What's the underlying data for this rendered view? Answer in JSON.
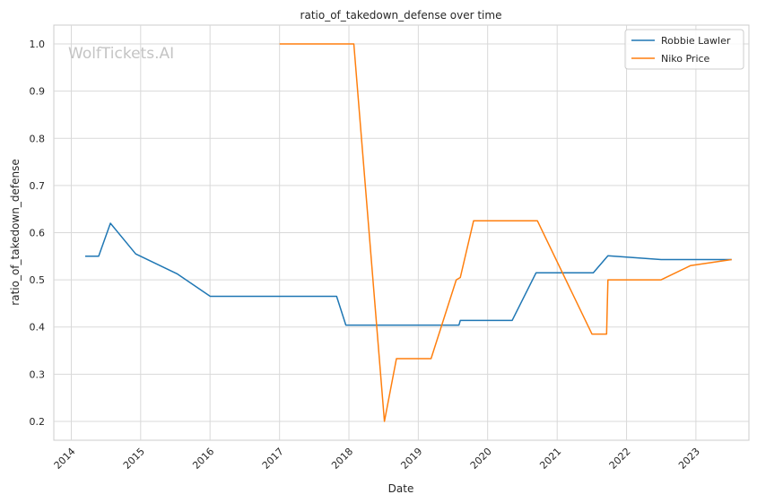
{
  "chart_data": {
    "type": "line",
    "title": "ratio_of_takedown_defense over time",
    "xlabel": "Date",
    "ylabel": "ratio_of_takedown_defense",
    "watermark": "WolfTickets.AI",
    "xlim": [
      "2013-10-01",
      "2023-10-07"
    ],
    "ylim": [
      0.16,
      1.04
    ],
    "x_ticks": [
      "2014-01-01",
      "2015-01-01",
      "2016-01-01",
      "2017-01-01",
      "2018-01-01",
      "2019-01-01",
      "2020-01-01",
      "2021-01-01",
      "2022-01-01",
      "2023-01-01"
    ],
    "x_tick_labels": [
      "2014",
      "2015",
      "2016",
      "2017",
      "2018",
      "2019",
      "2020",
      "2021",
      "2022",
      "2023"
    ],
    "y_ticks": [
      0.2,
      0.3,
      0.4,
      0.5,
      0.6,
      0.7,
      0.8,
      0.9,
      1.0
    ],
    "y_tick_labels": [
      "0.2",
      "0.3",
      "0.4",
      "0.5",
      "0.6",
      "0.7",
      "0.8",
      "0.9",
      "1.0"
    ],
    "grid": true,
    "legend_position": "top-right",
    "series": [
      {
        "name": "Robbie Lawler",
        "color": "#1f77b4",
        "points": [
          [
            "2014-03-15",
            0.55
          ],
          [
            "2014-05-25",
            0.55
          ],
          [
            "2014-07-26",
            0.62
          ],
          [
            "2014-12-06",
            0.555
          ],
          [
            "2015-07-11",
            0.513
          ],
          [
            "2016-01-02",
            0.465
          ],
          [
            "2017-10-28",
            0.465
          ],
          [
            "2017-12-16",
            0.404
          ],
          [
            "2019-08-03",
            0.404
          ],
          [
            "2019-08-10",
            0.414
          ],
          [
            "2020-05-09",
            0.414
          ],
          [
            "2020-09-12",
            0.515
          ],
          [
            "2021-07-10",
            0.515
          ],
          [
            "2021-09-25",
            0.551
          ],
          [
            "2022-07-02",
            0.543
          ],
          [
            "2023-07-08",
            0.543
          ]
        ]
      },
      {
        "name": "Niko Price",
        "color": "#ff7f0e",
        "points": [
          [
            "2017-01-01",
            1.0
          ],
          [
            "2018-01-13",
            1.0
          ],
          [
            "2018-01-27",
            1.0
          ],
          [
            "2018-07-07",
            0.2
          ],
          [
            "2018-09-08",
            0.333
          ],
          [
            "2019-03-09",
            0.333
          ],
          [
            "2019-07-20",
            0.5
          ],
          [
            "2019-08-10",
            0.505
          ],
          [
            "2019-10-19",
            0.625
          ],
          [
            "2020-09-19",
            0.625
          ],
          [
            "2021-07-03",
            0.385
          ],
          [
            "2021-09-18",
            0.385
          ],
          [
            "2021-09-25",
            0.5
          ],
          [
            "2022-07-02",
            0.5
          ],
          [
            "2022-12-03",
            0.53
          ],
          [
            "2023-07-08",
            0.543
          ]
        ]
      }
    ]
  }
}
